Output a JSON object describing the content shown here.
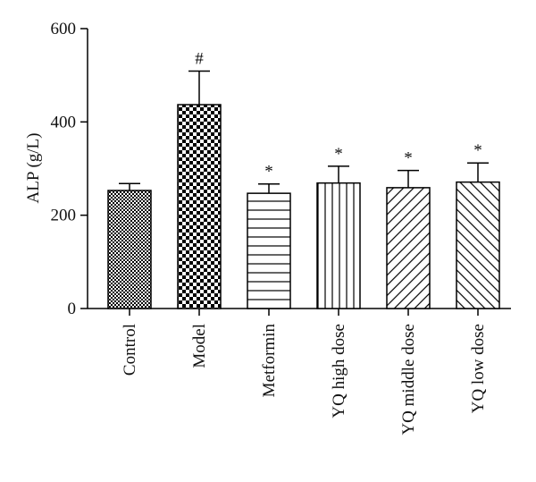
{
  "chart_data": {
    "type": "bar",
    "title": "",
    "xlabel": "",
    "ylabel": "ALP (g/L)",
    "ylim": [
      0,
      600
    ],
    "yticks": [
      "0",
      "200",
      "400",
      "600"
    ],
    "categories": [
      "Control",
      "Model",
      "Metformin",
      "YQ high dose",
      "YQ middle dose",
      "YQ low dose"
    ],
    "values": [
      253,
      437,
      247,
      269,
      259,
      271
    ],
    "errors": [
      15,
      72,
      20,
      36,
      37,
      41
    ],
    "annotations": [
      "",
      "#",
      "*",
      "*",
      "*",
      "*"
    ],
    "patterns": [
      "fine-checker",
      "large-checker",
      "horizontal-lines",
      "vertical-lines",
      "diagonal-up-lines",
      "diagonal-down-lines"
    ],
    "grid": false,
    "bar_color": "#000000",
    "background": "#ffffff"
  }
}
